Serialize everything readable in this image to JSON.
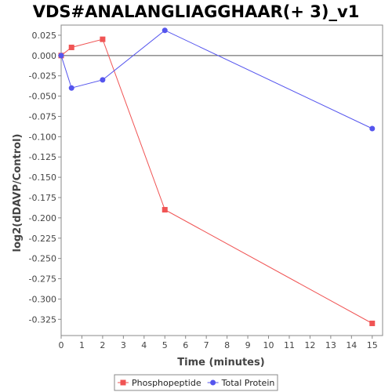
{
  "chart_data": {
    "type": "line",
    "title": "VDS#ANALANGLIAGGHAAR(+ 3)_v1",
    "xlabel": "Time (minutes)",
    "ylabel": "log2(dDAVP/Control)",
    "xlim": [
      0,
      15.5
    ],
    "ylim": [
      -0.345,
      0.0375
    ],
    "xticks": [
      0,
      1,
      2,
      3,
      4,
      5,
      6,
      7,
      8,
      9,
      10,
      11,
      12,
      13,
      14,
      15
    ],
    "yticks": [
      0.025,
      0.0,
      -0.025,
      -0.05,
      -0.075,
      -0.1,
      -0.125,
      -0.15,
      -0.175,
      -0.2,
      -0.225,
      -0.25,
      -0.275,
      -0.3,
      -0.325
    ],
    "ytick_labels": [
      "0.025",
      "0.000",
      "-0.025",
      "-0.050",
      "-0.075",
      "-0.100",
      "-0.125",
      "-0.150",
      "-0.175",
      "-0.200",
      "-0.225",
      "-0.250",
      "-0.275",
      "-0.300",
      "-0.325"
    ],
    "reference_line_y": 0,
    "grid": false,
    "legend_position": "bottom",
    "series": [
      {
        "name": "Phosphopeptide",
        "color": "#f05454",
        "marker": "square",
        "x": [
          0,
          0.5,
          2,
          5,
          15
        ],
        "y": [
          0.0,
          0.01,
          0.02,
          -0.19,
          -0.33
        ]
      },
      {
        "name": "Total Protein",
        "color": "#5555ee",
        "marker": "circle",
        "x": [
          0,
          0.5,
          2,
          5,
          15
        ],
        "y": [
          0.0,
          -0.04,
          -0.03,
          0.031,
          -0.09
        ]
      }
    ]
  }
}
